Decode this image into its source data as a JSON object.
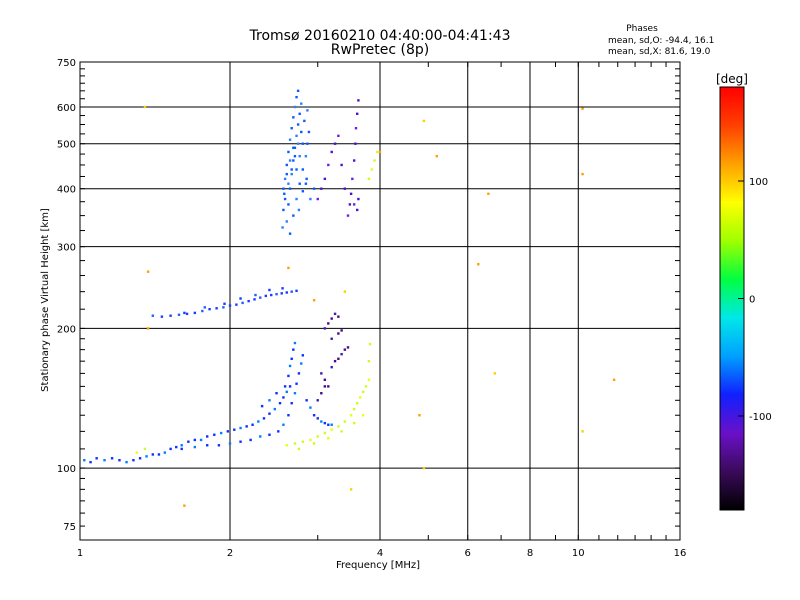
{
  "chart_data": {
    "type": "scatter",
    "title": "Tromsø 20160210 04:40:00-04:41:43",
    "subtitle": "RwPretec (8p)",
    "xlabel": "Frequency [MHz]",
    "ylabel": "Stationary phase Virtual Height [km]",
    "x_scale": "log",
    "y_scale": "log",
    "xlim": [
      1,
      16
    ],
    "ylim": [
      70,
      750
    ],
    "x_ticks": [
      1,
      2,
      4,
      6,
      8,
      10,
      16
    ],
    "y_ticks": [
      75,
      100,
      200,
      300,
      400,
      500,
      600,
      750
    ],
    "grid": true,
    "stats": {
      "heading": "Phases",
      "line_o": "mean, sd,O: -94.4, 16.1",
      "line_x": "mean, sd,X:  81.6, 19.0"
    },
    "colorbar": {
      "label": "[deg]",
      "range": [
        -180,
        180
      ],
      "ticks": [
        100,
        0,
        -100
      ],
      "colors": [
        "#000000",
        "#3a0a5a",
        "#6a10c8",
        "#1020ff",
        "#00a0ff",
        "#00e8e8",
        "#00ff40",
        "#a0ff00",
        "#ffff00",
        "#ffa000",
        "#ff4000",
        "#ff0000"
      ]
    },
    "series": [
      {
        "points": [
          [
            1.02,
            104
          ],
          [
            1.05,
            103
          ],
          [
            1.08,
            105
          ],
          [
            1.12,
            104
          ],
          [
            1.16,
            105
          ],
          [
            1.2,
            104
          ],
          [
            1.24,
            103
          ],
          [
            1.28,
            104
          ],
          [
            1.32,
            105
          ],
          [
            1.36,
            106
          ],
          [
            1.4,
            107
          ],
          [
            1.44,
            107
          ],
          [
            1.48,
            108
          ],
          [
            1.52,
            110
          ],
          [
            1.56,
            111
          ],
          [
            1.6,
            112
          ],
          [
            1.65,
            114
          ],
          [
            1.7,
            115
          ],
          [
            1.75,
            115
          ],
          [
            1.8,
            117
          ],
          [
            1.86,
            118
          ],
          [
            1.92,
            119
          ],
          [
            1.98,
            120
          ],
          [
            2.04,
            121
          ],
          [
            2.1,
            122
          ],
          [
            2.16,
            123
          ],
          [
            2.22,
            124
          ],
          [
            2.28,
            126
          ],
          [
            2.34,
            128
          ],
          [
            2.4,
            131
          ],
          [
            2.46,
            134
          ],
          [
            2.52,
            138
          ],
          [
            2.56,
            142
          ],
          [
            2.6,
            146
          ],
          [
            2.64,
            150
          ],
          [
            1.6,
            110
          ],
          [
            1.7,
            111
          ],
          [
            1.8,
            112
          ],
          [
            1.9,
            112
          ],
          [
            2.0,
            113
          ],
          [
            2.1,
            114
          ],
          [
            2.2,
            115
          ],
          [
            2.3,
            117
          ],
          [
            2.4,
            118
          ],
          [
            2.5,
            120
          ],
          [
            2.56,
            124
          ],
          [
            2.62,
            130
          ],
          [
            2.66,
            138
          ],
          [
            2.7,
            145
          ],
          [
            2.72,
            152
          ],
          [
            2.75,
            160
          ],
          [
            2.78,
            168
          ],
          [
            2.8,
            175
          ],
          [
            2.62,
            158
          ],
          [
            2.64,
            166
          ],
          [
            2.66,
            172
          ],
          [
            2.68,
            180
          ],
          [
            2.7,
            186
          ],
          [
            2.58,
            150
          ],
          [
            2.48,
            145
          ],
          [
            2.4,
            140
          ],
          [
            2.32,
            136
          ],
          [
            2.85,
            140
          ],
          [
            2.9,
            135
          ],
          [
            2.95,
            130
          ],
          [
            3.0,
            128
          ],
          [
            3.05,
            126
          ],
          [
            3.1,
            125
          ],
          [
            3.15,
            124
          ],
          [
            3.2,
            124
          ]
        ]
      },
      {
        "points": [
          [
            1.4,
            213
          ],
          [
            1.46,
            212
          ],
          [
            1.52,
            213
          ],
          [
            1.58,
            214
          ],
          [
            1.64,
            215
          ],
          [
            1.7,
            216
          ],
          [
            1.76,
            218
          ],
          [
            1.82,
            220
          ],
          [
            1.88,
            221
          ],
          [
            1.94,
            222
          ],
          [
            2.0,
            224
          ],
          [
            2.06,
            225
          ],
          [
            2.12,
            227
          ],
          [
            2.18,
            229
          ],
          [
            2.24,
            231
          ],
          [
            2.3,
            233
          ],
          [
            2.36,
            235
          ],
          [
            2.42,
            236
          ],
          [
            2.48,
            237
          ],
          [
            2.54,
            238
          ],
          [
            2.6,
            239
          ],
          [
            2.66,
            240
          ],
          [
            2.72,
            241
          ],
          [
            1.62,
            216
          ],
          [
            1.78,
            222
          ],
          [
            1.95,
            226
          ],
          [
            2.1,
            232
          ],
          [
            2.25,
            236
          ],
          [
            2.4,
            242
          ],
          [
            2.55,
            244
          ]
        ]
      },
      {
        "points": [
          [
            2.55,
            330
          ],
          [
            2.56,
            360
          ],
          [
            2.57,
            390
          ],
          [
            2.58,
            420
          ],
          [
            2.6,
            450
          ],
          [
            2.62,
            480
          ],
          [
            2.64,
            510
          ],
          [
            2.66,
            540
          ],
          [
            2.68,
            570
          ],
          [
            2.7,
            600
          ],
          [
            2.72,
            630
          ],
          [
            2.74,
            650
          ],
          [
            2.6,
            340
          ],
          [
            2.62,
            370
          ],
          [
            2.64,
            400
          ],
          [
            2.66,
            430
          ],
          [
            2.68,
            460
          ],
          [
            2.7,
            490
          ],
          [
            2.72,
            520
          ],
          [
            2.74,
            550
          ],
          [
            2.76,
            580
          ],
          [
            2.78,
            610
          ],
          [
            2.64,
            320
          ],
          [
            2.68,
            350
          ],
          [
            2.72,
            380
          ],
          [
            2.76,
            410
          ],
          [
            2.8,
            440
          ],
          [
            2.84,
            470
          ],
          [
            2.86,
            500
          ],
          [
            2.88,
            530
          ],
          [
            2.75,
            360
          ],
          [
            2.8,
            395
          ],
          [
            2.85,
            420
          ],
          [
            2.9,
            380
          ],
          [
            2.95,
            400
          ],
          [
            2.58,
            380
          ],
          [
            2.62,
            410
          ],
          [
            2.66,
            440
          ],
          [
            2.7,
            470
          ],
          [
            2.74,
            500
          ],
          [
            2.78,
            530
          ],
          [
            2.82,
            560
          ],
          [
            2.86,
            590
          ],
          [
            2.56,
            400
          ],
          [
            2.6,
            430
          ],
          [
            2.64,
            460
          ],
          [
            2.68,
            490
          ],
          [
            2.72,
            440
          ],
          [
            2.76,
            470
          ],
          [
            2.8,
            500
          ],
          [
            2.84,
            410
          ]
        ]
      },
      {
        "points": [
          [
            3.45,
            350
          ],
          [
            3.48,
            370
          ],
          [
            3.5,
            390
          ],
          [
            3.52,
            420
          ],
          [
            3.55,
            460
          ],
          [
            3.57,
            500
          ],
          [
            3.58,
            540
          ],
          [
            3.6,
            580
          ],
          [
            3.62,
            620
          ],
          [
            3.0,
            380
          ],
          [
            3.05,
            400
          ],
          [
            3.1,
            420
          ],
          [
            3.15,
            450
          ],
          [
            3.2,
            480
          ],
          [
            3.25,
            500
          ],
          [
            3.3,
            520
          ],
          [
            3.35,
            450
          ],
          [
            3.4,
            400
          ],
          [
            3.55,
            370
          ],
          [
            3.6,
            360
          ],
          [
            3.62,
            380
          ]
        ]
      },
      {
        "points": [
          [
            2.6,
            112
          ],
          [
            2.7,
            113
          ],
          [
            2.8,
            114
          ],
          [
            2.9,
            115
          ],
          [
            3.0,
            117
          ],
          [
            3.1,
            119
          ],
          [
            3.2,
            121
          ],
          [
            3.3,
            123
          ],
          [
            3.4,
            126
          ],
          [
            3.5,
            130
          ],
          [
            3.55,
            134
          ],
          [
            3.6,
            138
          ],
          [
            3.65,
            142
          ],
          [
            3.7,
            146
          ],
          [
            3.75,
            150
          ],
          [
            3.8,
            155
          ],
          [
            2.75,
            110
          ],
          [
            2.95,
            113
          ],
          [
            3.15,
            116
          ],
          [
            3.35,
            120
          ],
          [
            3.55,
            125
          ],
          [
            3.7,
            130
          ],
          [
            3.8,
            170
          ],
          [
            3.82,
            185
          ],
          [
            1.3,
            108
          ],
          [
            1.35,
            110
          ],
          [
            3.8,
            420
          ],
          [
            3.85,
            440
          ],
          [
            3.9,
            460
          ],
          [
            3.95,
            480
          ]
        ]
      },
      {
        "points": [
          [
            3.05,
            160
          ],
          [
            3.1,
            155
          ],
          [
            3.15,
            150
          ],
          [
            3.2,
            165
          ],
          [
            3.25,
            170
          ],
          [
            3.3,
            172
          ],
          [
            3.35,
            176
          ],
          [
            3.4,
            180
          ],
          [
            3.45,
            182
          ],
          [
            3.1,
            200
          ],
          [
            3.15,
            205
          ],
          [
            3.2,
            210
          ],
          [
            3.25,
            215
          ],
          [
            3.3,
            212
          ],
          [
            3.35,
            198
          ],
          [
            3.0,
            140
          ],
          [
            3.05,
            145
          ],
          [
            3.1,
            150
          ],
          [
            3.2,
            190
          ],
          [
            3.3,
            195
          ]
        ]
      },
      {
        "points": [
          [
            1.35,
            600
          ],
          [
            1.37,
            265
          ],
          [
            2.62,
            270
          ],
          [
            3.4,
            240
          ],
          [
            2.95,
            230
          ],
          [
            1.37,
            200
          ],
          [
            3.5,
            90
          ],
          [
            1.62,
            83
          ],
          [
            4.8,
            130
          ],
          [
            4.9,
            100
          ],
          [
            6.3,
            275
          ],
          [
            6.6,
            390
          ],
          [
            6.8,
            160
          ],
          [
            10.2,
            595
          ],
          [
            10.2,
            430
          ],
          [
            10.2,
            120
          ],
          [
            11.8,
            155
          ],
          [
            4.0,
            480
          ],
          [
            4.9,
            560
          ],
          [
            5.2,
            470
          ]
        ]
      }
    ]
  }
}
